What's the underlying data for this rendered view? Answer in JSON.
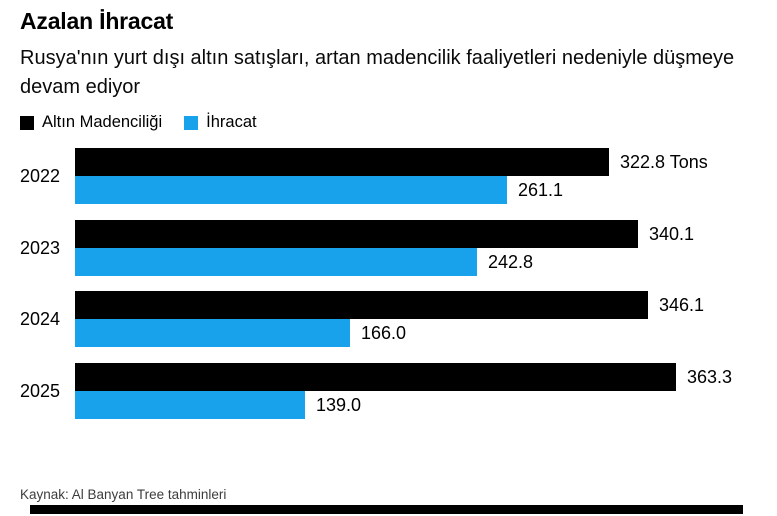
{
  "colors": {
    "mining": "#000000",
    "exports": "#18A2EC",
    "background": "#ffffff",
    "source_text": "#3d3d3d"
  },
  "chart_data": {
    "type": "bar",
    "orientation": "horizontal",
    "title": "Azalan İhracat",
    "subtitle": "Rusya'nın yurt dışı altın satışları, artan madencilik faaliyetleri nedeniyle düşmeye devam ediyor",
    "unit": "Tons",
    "categories": [
      "2022",
      "2023",
      "2024",
      "2025"
    ],
    "series": [
      {
        "name": "Altın Madenciliği",
        "color": "#000000",
        "values": [
          322.8,
          340.1,
          346.1,
          363.3
        ],
        "labels": [
          "322.8 Tons",
          "340.1",
          "346.1",
          "363.3"
        ]
      },
      {
        "name": "İhracat",
        "color": "#18A2EC",
        "values": [
          261.1,
          242.8,
          166.0,
          139.0
        ],
        "labels": [
          "261.1",
          "242.8",
          "166.0",
          "139.0"
        ]
      }
    ],
    "xlim": [
      0,
      380
    ],
    "axis_max_value": 363.3,
    "grid": false,
    "legend_position": "top",
    "source": "Kaynak: Al Banyan Tree tahminleri"
  }
}
